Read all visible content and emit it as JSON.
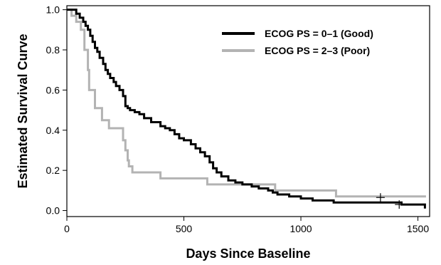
{
  "chart_data": {
    "type": "line",
    "title": "",
    "xlabel": "Days Since Baseline",
    "ylabel": "Estimated Survival Curve",
    "xlim": [
      0,
      1550
    ],
    "ylim": [
      -0.03,
      1.02
    ],
    "xticks": [
      0,
      500,
      1000,
      1500
    ],
    "yticks": [
      0.0,
      0.2,
      0.4,
      0.6,
      0.8,
      1.0
    ],
    "xtick_labels": [
      "0",
      "500",
      "1000",
      "1500"
    ],
    "ytick_labels": [
      "0.0",
      "0.2",
      "0.4",
      "0.6",
      "0.8",
      "1.0"
    ],
    "grid": false,
    "legend_position": "top-right",
    "series": [
      {
        "name": "ECOG PS = 0–1 (Good)",
        "color": "#000000",
        "step_x": [
          0,
          40,
          55,
          70,
          80,
          90,
          100,
          110,
          120,
          130,
          140,
          155,
          165,
          175,
          185,
          200,
          210,
          225,
          240,
          250,
          260,
          270,
          290,
          310,
          330,
          360,
          400,
          420,
          440,
          460,
          480,
          500,
          530,
          550,
          570,
          590,
          610,
          625,
          640,
          660,
          690,
          720,
          750,
          790,
          820,
          860,
          880,
          900,
          950,
          1000,
          1050,
          1140,
          1430,
          1530
        ],
        "step_y": [
          1.0,
          0.98,
          0.96,
          0.94,
          0.92,
          0.9,
          0.87,
          0.84,
          0.81,
          0.79,
          0.76,
          0.73,
          0.7,
          0.68,
          0.66,
          0.64,
          0.62,
          0.6,
          0.57,
          0.52,
          0.51,
          0.5,
          0.49,
          0.48,
          0.46,
          0.44,
          0.42,
          0.41,
          0.4,
          0.38,
          0.36,
          0.35,
          0.33,
          0.31,
          0.29,
          0.27,
          0.24,
          0.21,
          0.19,
          0.17,
          0.15,
          0.14,
          0.13,
          0.12,
          0.11,
          0.1,
          0.09,
          0.08,
          0.07,
          0.06,
          0.05,
          0.04,
          0.03,
          0.01
        ],
        "censor_x": [
          1340,
          1420
        ],
        "censor_y": [
          0.065,
          0.03
        ]
      },
      {
        "name": "ECOG PS = 2–3 (Poor)",
        "color": "#b3b3b3",
        "step_x": [
          0,
          20,
          40,
          60,
          75,
          90,
          95,
          120,
          150,
          180,
          200,
          240,
          250,
          260,
          265,
          280,
          300,
          400,
          600,
          890,
          1150,
          1530
        ],
        "step_y": [
          1.0,
          0.97,
          0.94,
          0.9,
          0.8,
          0.7,
          0.6,
          0.51,
          0.45,
          0.41,
          0.41,
          0.35,
          0.3,
          0.25,
          0.22,
          0.19,
          0.19,
          0.16,
          0.13,
          0.1,
          0.07,
          0.065
        ],
        "censor_x": [],
        "censor_y": []
      }
    ]
  }
}
